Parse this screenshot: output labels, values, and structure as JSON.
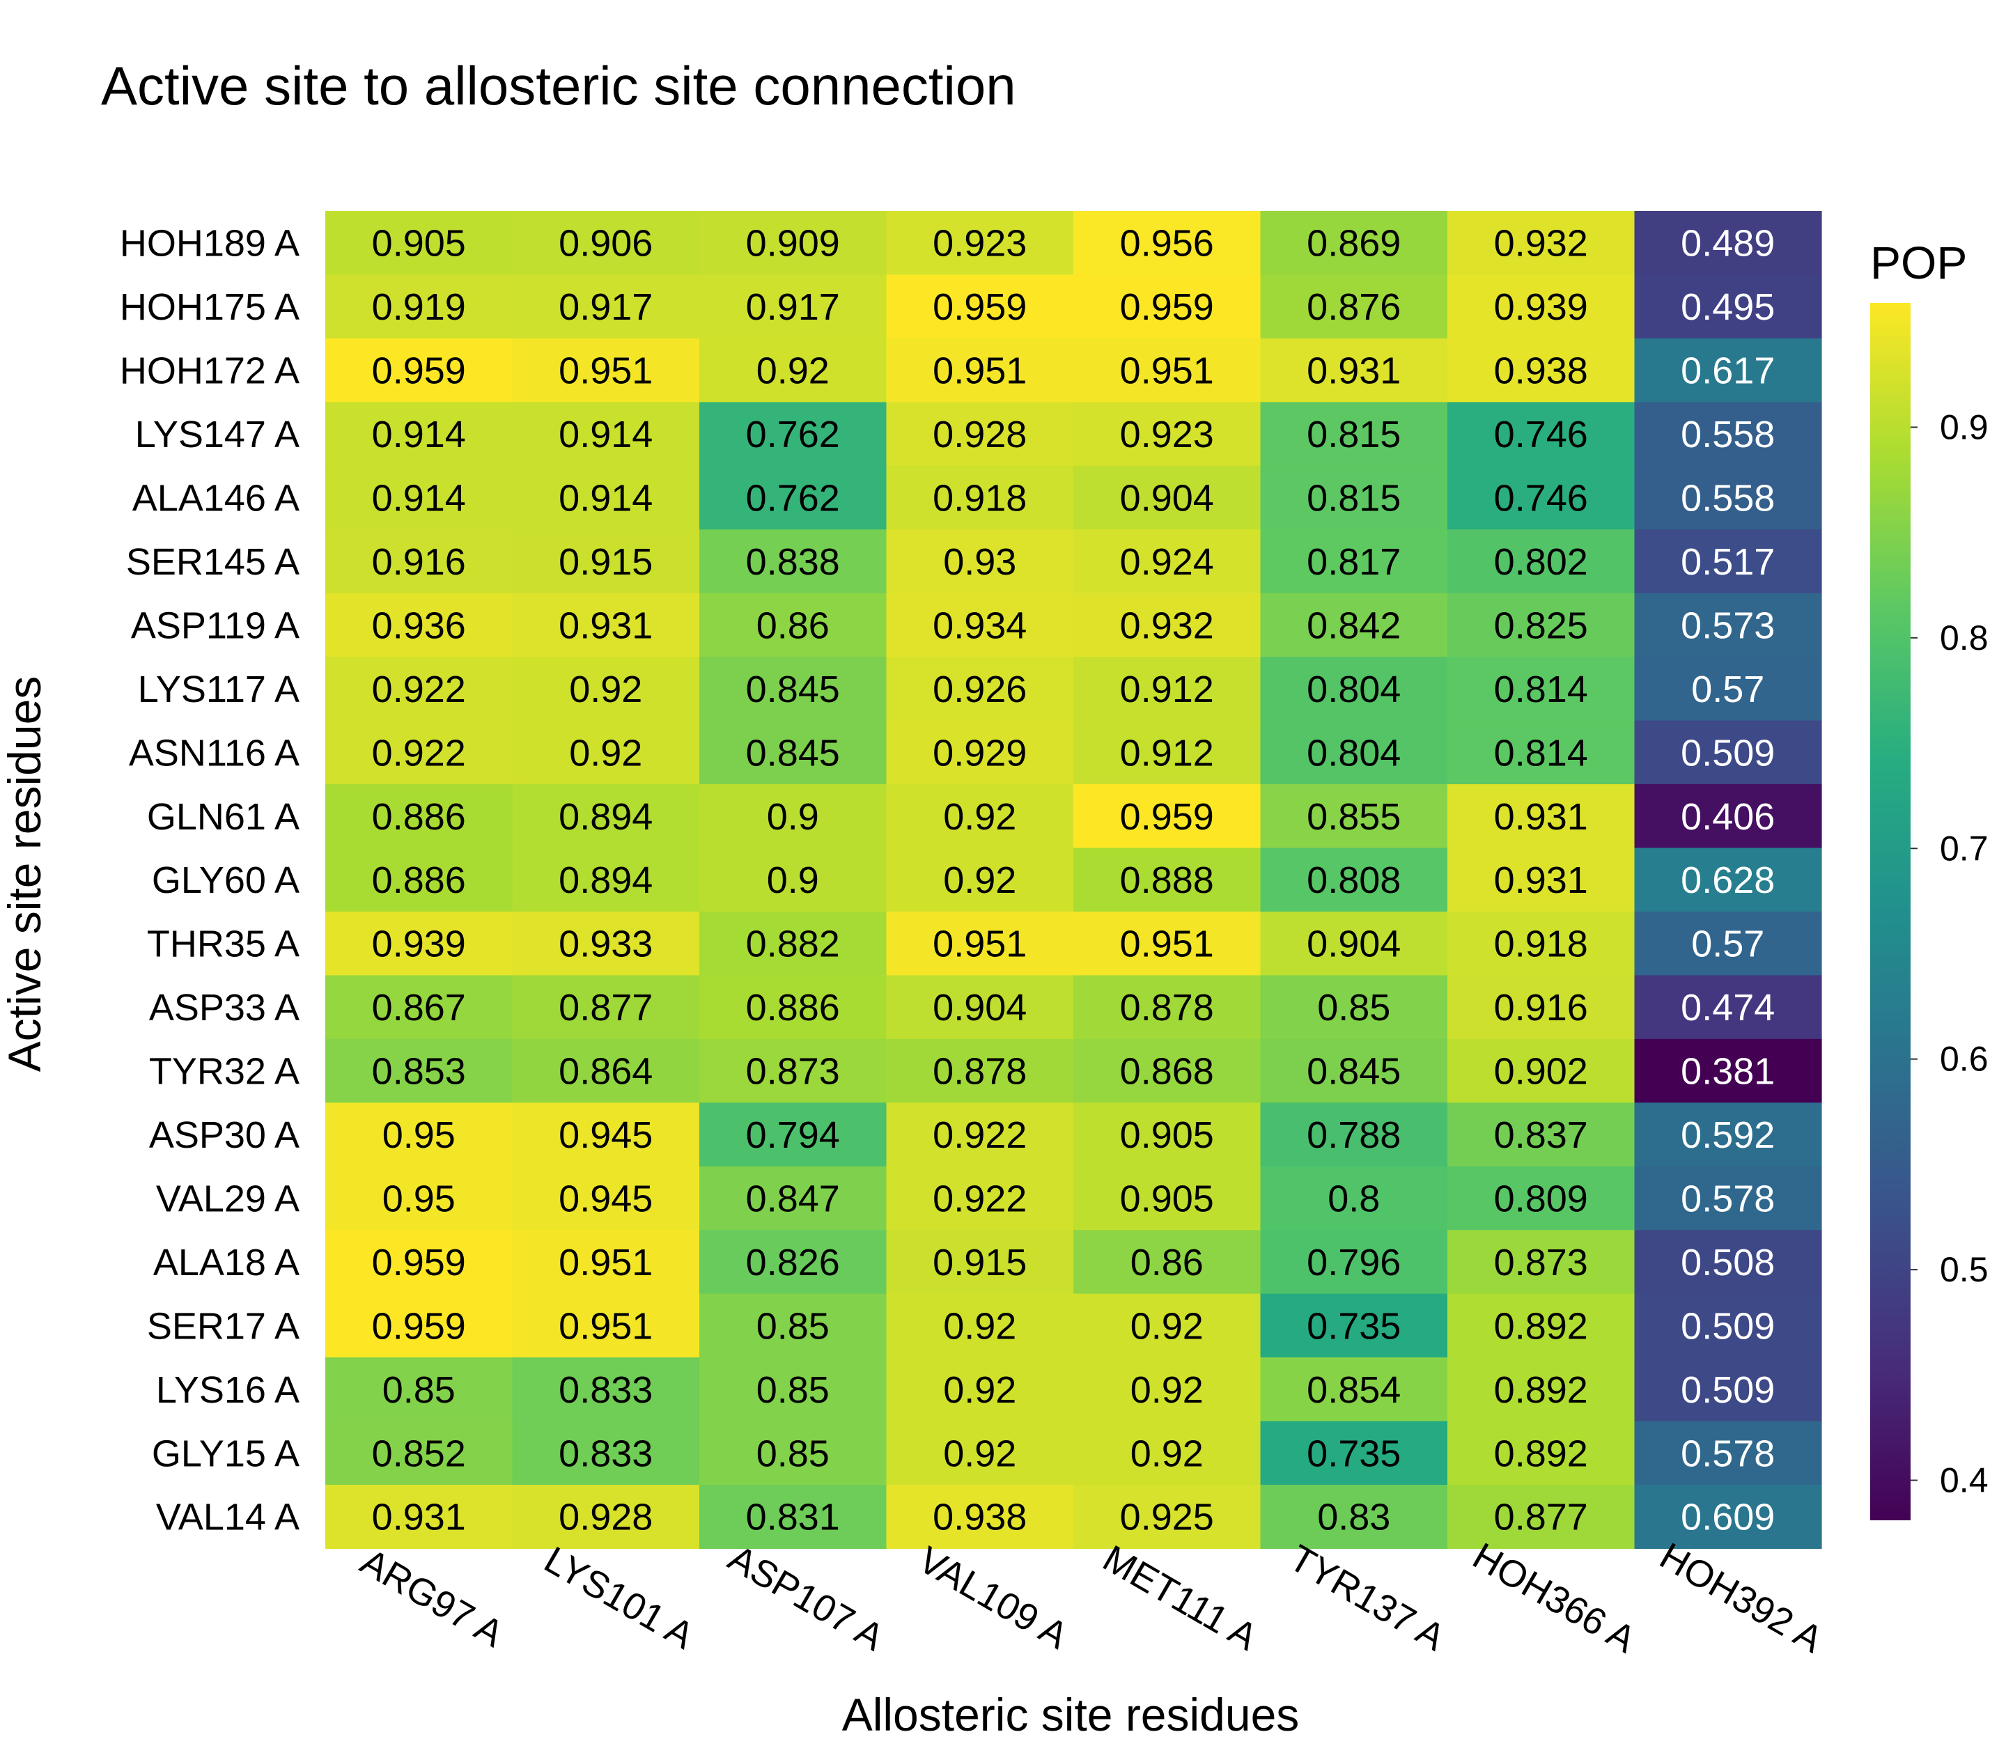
{
  "chart_data": {
    "type": "heatmap",
    "title": "Active site to allosteric site connection",
    "xlabel": "Allosteric site residues",
    "ylabel": "Active site residues",
    "x": [
      "ARG97 A",
      "LYS101 A",
      "ASP107 A",
      "VAL109 A",
      "MET111 A",
      "TYR137 A",
      "HOH366 A",
      "HOH392 A"
    ],
    "y": [
      "HOH189 A",
      "HOH175 A",
      "HOH172 A",
      "LYS147 A",
      "ALA146 A",
      "SER145 A",
      "ASP119 A",
      "LYS117 A",
      "ASN116 A",
      "GLN61 A",
      "GLY60 A",
      "THR35 A",
      "ASP33 A",
      "TYR32 A",
      "ASP30 A",
      "VAL29 A",
      "ALA18 A",
      "SER17 A",
      "LYS16 A",
      "GLY15 A",
      "VAL14 A"
    ],
    "values": [
      [
        "0.905",
        "0.906",
        "0.909",
        "0.923",
        "0.956",
        "0.869",
        "0.932",
        "0.489"
      ],
      [
        "0.919",
        "0.917",
        "0.917",
        "0.959",
        "0.959",
        "0.876",
        "0.939",
        "0.495"
      ],
      [
        "0.959",
        "0.951",
        "0.92",
        "0.951",
        "0.951",
        "0.931",
        "0.938",
        "0.617"
      ],
      [
        "0.914",
        "0.914",
        "0.762",
        "0.928",
        "0.923",
        "0.815",
        "0.746",
        "0.558"
      ],
      [
        "0.914",
        "0.914",
        "0.762",
        "0.918",
        "0.904",
        "0.815",
        "0.746",
        "0.558"
      ],
      [
        "0.916",
        "0.915",
        "0.838",
        "0.93",
        "0.924",
        "0.817",
        "0.802",
        "0.517"
      ],
      [
        "0.936",
        "0.931",
        "0.86",
        "0.934",
        "0.932",
        "0.842",
        "0.825",
        "0.573"
      ],
      [
        "0.922",
        "0.92",
        "0.845",
        "0.926",
        "0.912",
        "0.804",
        "0.814",
        "0.57"
      ],
      [
        "0.922",
        "0.92",
        "0.845",
        "0.929",
        "0.912",
        "0.804",
        "0.814",
        "0.509"
      ],
      [
        "0.886",
        "0.894",
        "0.9",
        "0.92",
        "0.959",
        "0.855",
        "0.931",
        "0.406"
      ],
      [
        "0.886",
        "0.894",
        "0.9",
        "0.92",
        "0.888",
        "0.808",
        "0.931",
        "0.628"
      ],
      [
        "0.939",
        "0.933",
        "0.882",
        "0.951",
        "0.951",
        "0.904",
        "0.918",
        "0.57"
      ],
      [
        "0.867",
        "0.877",
        "0.886",
        "0.904",
        "0.878",
        "0.85",
        "0.916",
        "0.474"
      ],
      [
        "0.853",
        "0.864",
        "0.873",
        "0.878",
        "0.868",
        "0.845",
        "0.902",
        "0.381"
      ],
      [
        "0.95",
        "0.945",
        "0.794",
        "0.922",
        "0.905",
        "0.788",
        "0.837",
        "0.592"
      ],
      [
        "0.95",
        "0.945",
        "0.847",
        "0.922",
        "0.905",
        "0.8",
        "0.809",
        "0.578"
      ],
      [
        "0.959",
        "0.951",
        "0.826",
        "0.915",
        "0.86",
        "0.796",
        "0.873",
        "0.508"
      ],
      [
        "0.959",
        "0.951",
        "0.85",
        "0.92",
        "0.92",
        "0.735",
        "0.892",
        "0.509"
      ],
      [
        "0.85",
        "0.833",
        "0.85",
        "0.92",
        "0.92",
        "0.854",
        "0.892",
        "0.509"
      ],
      [
        "0.852",
        "0.833",
        "0.85",
        "0.92",
        "0.92",
        "0.735",
        "0.892",
        "0.578"
      ],
      [
        "0.931",
        "0.928",
        "0.831",
        "0.938",
        "0.925",
        "0.83",
        "0.877",
        "0.609"
      ]
    ],
    "colorbar": {
      "title": "POP",
      "range": [
        0.381,
        0.959
      ],
      "ticks": [
        "0.4",
        "0.5",
        "0.6",
        "0.7",
        "0.8",
        "0.9"
      ],
      "colormap": "viridis"
    },
    "grid": false,
    "legend_placement": "right"
  }
}
